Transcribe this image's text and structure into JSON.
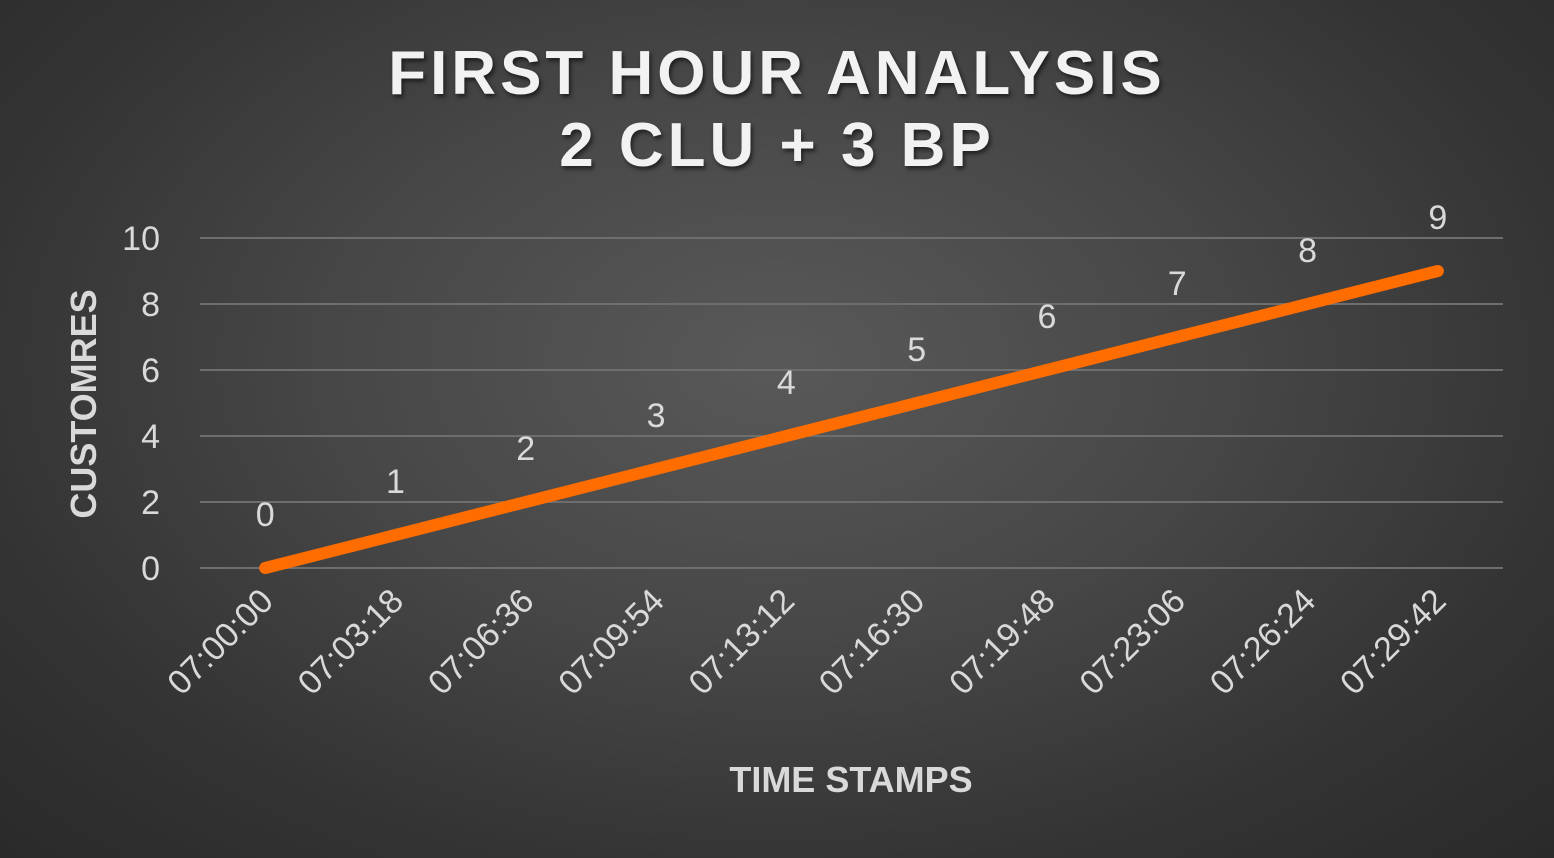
{
  "chart_data": {
    "type": "line",
    "title_lines": [
      "FIRST HOUR ANALYSIS",
      "2 CLU + 3 BP"
    ],
    "xlabel": "TIME STAMPS",
    "ylabel": "CUSTOMRES",
    "categories": [
      "07:00:00",
      "07:03:18",
      "07:06:36",
      "07:09:54",
      "07:13:12",
      "07:16:30",
      "07:19:48",
      "07:23:06",
      "07:26:24",
      "07:29:42"
    ],
    "series": [
      {
        "values": [
          0,
          1,
          2,
          3,
          4,
          5,
          6,
          7,
          8,
          9
        ]
      }
    ],
    "ylim": [
      0,
      10
    ],
    "yticks": [
      0,
      2,
      4,
      6,
      8,
      10
    ],
    "grid": true,
    "legend": "none",
    "data_labels": true,
    "colors": {
      "line": "#ff6d00",
      "gridline": "#6e6e6e",
      "text": "#d9d9d9",
      "title": "#f2f2f2"
    }
  }
}
